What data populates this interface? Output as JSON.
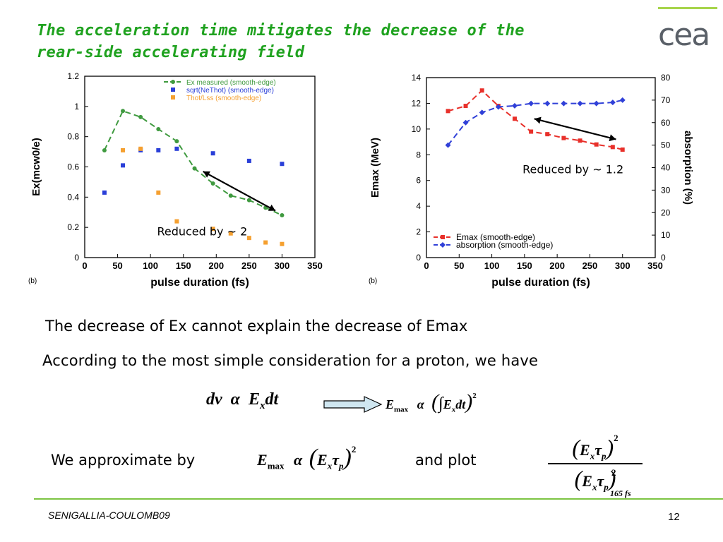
{
  "slide": {
    "title_line1": "The acceleration time mitigates the decrease of the",
    "title_line2": "rear-side accelerating field",
    "logo_text": "cea",
    "footer": "SENIGALLIA-COULOMB09",
    "page_number": "12",
    "line1": "The decrease of Ex cannot explain the decrease of Emax",
    "line2": "According to the most simple consideration for a proton, we have",
    "approx_label": "We approximate by",
    "plot_label": "and plot",
    "colors": {
      "title": "#1fa21f",
      "footer_line": "#7dc443",
      "logo_bar": "#a6d44a"
    }
  },
  "equations": {
    "eq1": {
      "dv": "dv",
      "alpha": "α",
      "E": "E",
      "sub": "x",
      "dt": "dt"
    },
    "eq2": {
      "E": "E",
      "max": "max",
      "alpha": "α",
      "int": "∫",
      "Ex": "E",
      "sub": "x",
      "dt": "dt",
      "pow": "2"
    },
    "eq3": {
      "E": "E",
      "max": "max",
      "alpha": "α",
      "Ex": "E",
      "sub": "x",
      "tau": "τ",
      "p": "p",
      "pow": "2"
    },
    "eq4": {
      "E": "E",
      "sub": "x",
      "tau": "τ",
      "p": "p",
      "pow": "2",
      "denom_sub": "165 fs"
    }
  },
  "chart_data": [
    {
      "type": "scatter",
      "panel": "(b)",
      "xlabel": "pulse duration (fs)",
      "ylabel": "Ex(mcw0/e)",
      "xlim": [
        0,
        350
      ],
      "ylim": [
        0,
        1.2
      ],
      "xticks": [
        "0",
        "50",
        "100",
        "150",
        "200",
        "250",
        "300",
        "350"
      ],
      "yticks": [
        "0",
        "0.2",
        "0.4",
        "0.6",
        "0.8",
        "1",
        "1.2"
      ],
      "legend_position": "top-right",
      "annotation": "Reduced by ~ 2",
      "series": [
        {
          "name": "Ex measured (smooth-edge)",
          "style": "dashed-line-circle",
          "color": "#3f9a3f",
          "x": [
            30,
            58,
            85,
            112,
            140,
            167,
            195,
            222,
            250,
            275,
            300
          ],
          "y": [
            0.71,
            0.97,
            0.93,
            0.85,
            0.77,
            0.59,
            0.49,
            0.41,
            0.38,
            0.33,
            0.28
          ]
        },
        {
          "name": "sqrt(NeThot) (smooth-edge)",
          "style": "square",
          "color": "#2a3fd8",
          "x": [
            30,
            58,
            85,
            112,
            140,
            195,
            250,
            300
          ],
          "y": [
            0.43,
            0.61,
            0.71,
            0.71,
            0.72,
            0.69,
            0.64,
            0.62
          ]
        },
        {
          "name": "Thot/Lss (smooth-edge)",
          "style": "square",
          "color": "#f5a030",
          "x": [
            58,
            85,
            112,
            140,
            195,
            222,
            250,
            275,
            300
          ],
          "y": [
            0.71,
            0.72,
            0.43,
            0.24,
            0.19,
            0.16,
            0.13,
            0.1,
            0.09
          ]
        }
      ]
    },
    {
      "type": "line",
      "panel": "(b)",
      "xlabel": "pulse duration (fs)",
      "ylabel": "Emax (MeV)",
      "y2label": "absorption (%)",
      "xlim": [
        0,
        350
      ],
      "ylim": [
        0,
        14
      ],
      "y2lim": [
        0,
        80
      ],
      "xticks": [
        "0",
        "50",
        "100",
        "150",
        "200",
        "250",
        "300",
        "350"
      ],
      "yticks": [
        "0",
        "2",
        "4",
        "6",
        "8",
        "10",
        "12",
        "14"
      ],
      "y2ticks": [
        "0",
        "10",
        "20",
        "30",
        "40",
        "50",
        "60",
        "70",
        "80"
      ],
      "legend_position": "bottom-left",
      "annotation": "Reduced by ~ 1.2",
      "series": [
        {
          "name": "Emax (smooth-edge)",
          "axis": "left",
          "style": "dashed-line-square",
          "color": "#e8302a",
          "x": [
            33,
            60,
            85,
            110,
            135,
            160,
            185,
            210,
            235,
            260,
            285,
            300
          ],
          "y": [
            11.4,
            11.8,
            13.0,
            11.8,
            10.8,
            9.8,
            9.6,
            9.3,
            9.1,
            8.8,
            8.6,
            8.4
          ]
        },
        {
          "name": "absorption (smooth-edge)",
          "axis": "right",
          "style": "dashed-line-diamond",
          "color": "#3040d8",
          "x": [
            33,
            60,
            85,
            110,
            135,
            160,
            185,
            210,
            235,
            260,
            285,
            300
          ],
          "y": [
            50,
            60,
            64.5,
            67,
            67.5,
            68.5,
            68.5,
            68.5,
            68.5,
            68.5,
            69,
            70
          ]
        }
      ]
    }
  ]
}
